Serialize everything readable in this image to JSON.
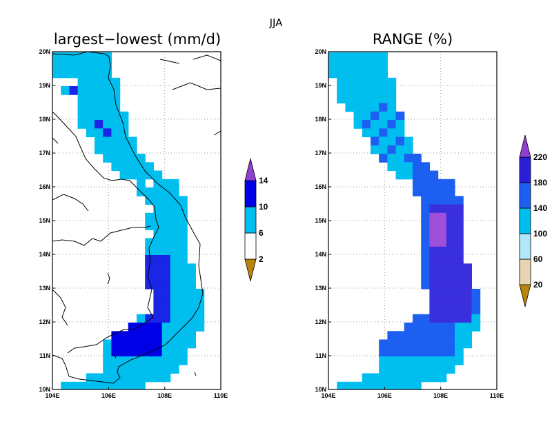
{
  "figure_title": "JJA",
  "panels": [
    {
      "title": "largest−lowest (mm/d)",
      "x_ticks": [
        "104E",
        "106E",
        "108E",
        "110E"
      ],
      "y_ticks": [
        "10N",
        "11N",
        "12N",
        "13N",
        "14N",
        "15N",
        "16N",
        "17N",
        "18N",
        "19N",
        "20N"
      ],
      "colorbar": {
        "labels": [
          "2",
          "6",
          "10",
          "14"
        ],
        "colors": [
          "#b8860b",
          "#ffffff",
          "#00bfef",
          "#0000e6",
          "#9040d0"
        ]
      }
    },
    {
      "title": "RANGE (%)",
      "x_ticks": [
        "104E",
        "106E",
        "108E",
        "110E"
      ],
      "y_ticks": [
        "10N",
        "11N",
        "12N",
        "13N",
        "14N",
        "15N",
        "16N",
        "17N",
        "18N",
        "19N",
        "20N"
      ],
      "colorbar": {
        "labels": [
          "20",
          "60",
          "100",
          "140",
          "180",
          "220"
        ],
        "colors": [
          "#b8860b",
          "#e6d5b0",
          "#b0e8f8",
          "#00bfef",
          "#1d5ff0",
          "#2a1fd8",
          "#9040d0"
        ]
      }
    }
  ]
}
